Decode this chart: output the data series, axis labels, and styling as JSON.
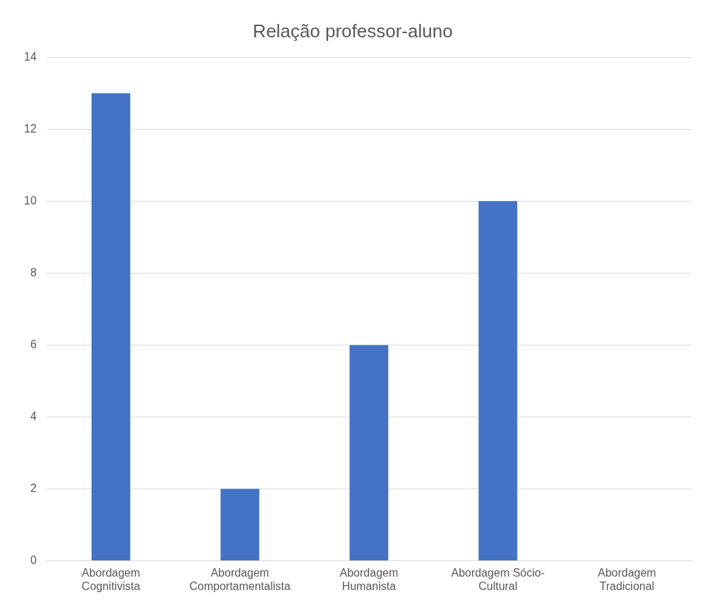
{
  "chart_data": {
    "type": "bar",
    "title": "Relação professor-aluno",
    "categories": [
      "Abordagem Cognitivista",
      "Abordagem Comportamentalista",
      "Abordagem Humanista",
      "Abordagem Sócio-Cultural",
      "Abordagem Tradicional"
    ],
    "values": [
      13,
      2,
      6,
      10,
      0
    ],
    "color": "#4472c4",
    "ylim": [
      0,
      14
    ],
    "yticks": [
      0,
      2,
      4,
      6,
      8,
      10,
      12,
      14
    ],
    "grid": "y",
    "legend": false
  }
}
